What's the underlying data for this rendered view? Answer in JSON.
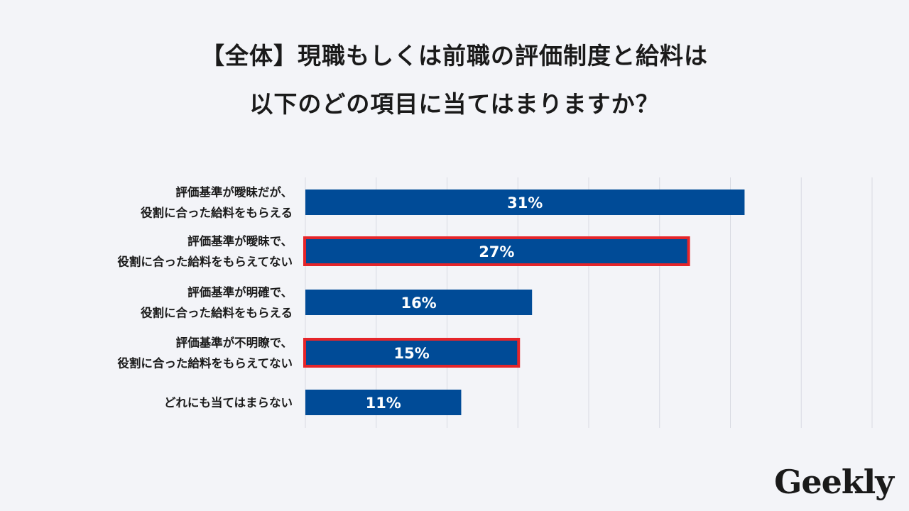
{
  "title_lines": [
    "【全体】現職もしくは前職の評価制度と給料は",
    "以下のどの項目に当てはまりますか？"
  ],
  "logo_text": "Geekly",
  "colors": {
    "bar": "#004b97",
    "highlight": "#e5252a",
    "grid": "#d8dae2",
    "background": "#f3f4f8"
  },
  "chart_data": {
    "type": "bar",
    "orientation": "horizontal",
    "title": "【全体】現職もしくは前職の評価制度と給料は 以下のどの項目に当てはまりますか？",
    "categories": [
      [
        "評価基準が曖昧だが、",
        "役割に合った給料をもらえる"
      ],
      [
        "評価基準が曖昧で、",
        "役割に合った給料をもらえてない"
      ],
      [
        "評価基準が明確で、",
        "役割に合った給料をもらえる"
      ],
      [
        "評価基準が不明瞭で、",
        "役割に合った給料をもらえてない"
      ],
      [
        "どれにも当てはまらない"
      ]
    ],
    "values": [
      31,
      27,
      16,
      15,
      11
    ],
    "data_labels": [
      "31%",
      "27%",
      "16%",
      "15%",
      "11%"
    ],
    "highlighted": [
      false,
      true,
      false,
      true,
      false
    ],
    "xlim": [
      0,
      40
    ],
    "grid": true,
    "xlabel": "",
    "ylabel": ""
  }
}
